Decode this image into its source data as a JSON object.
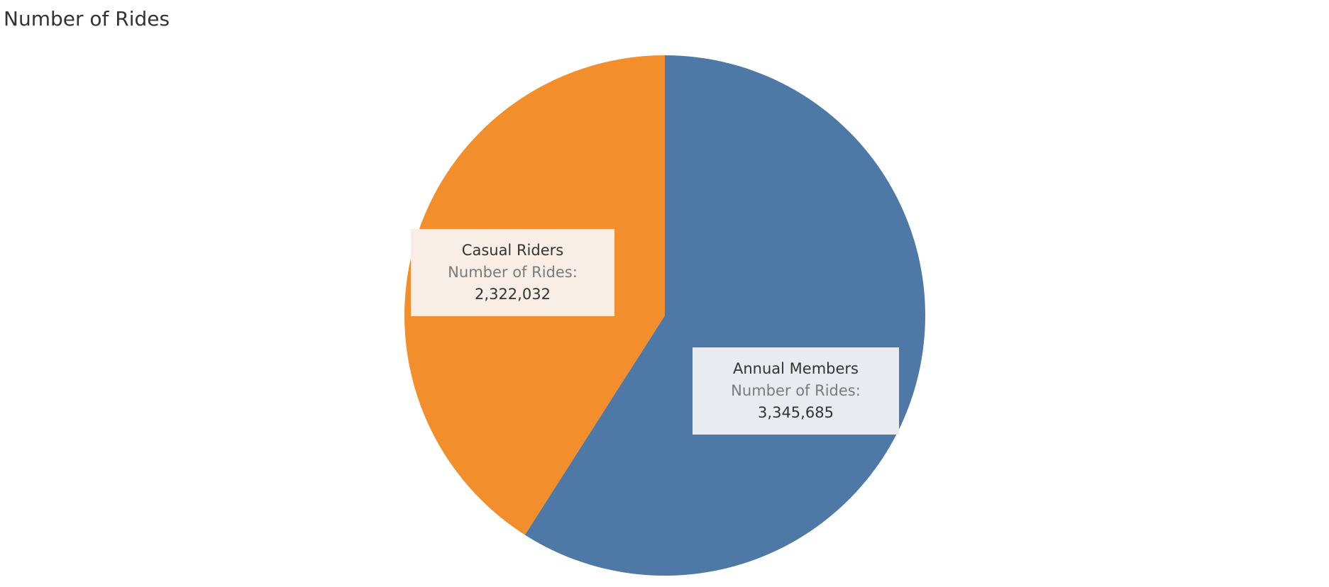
{
  "chart_data": {
    "type": "pie",
    "title": "Number of Rides",
    "measure_label": "Number of Rides:",
    "slices": [
      {
        "label": "Annual Members",
        "value": 3345685,
        "value_label": "3,345,685",
        "color": "#4e79a7",
        "label_bg": "#e8ecf1"
      },
      {
        "label": "Casual Riders",
        "value": 2322032,
        "value_label": "2,322,032",
        "color": "#f28e2b",
        "label_bg": "#f8eee5"
      }
    ]
  }
}
